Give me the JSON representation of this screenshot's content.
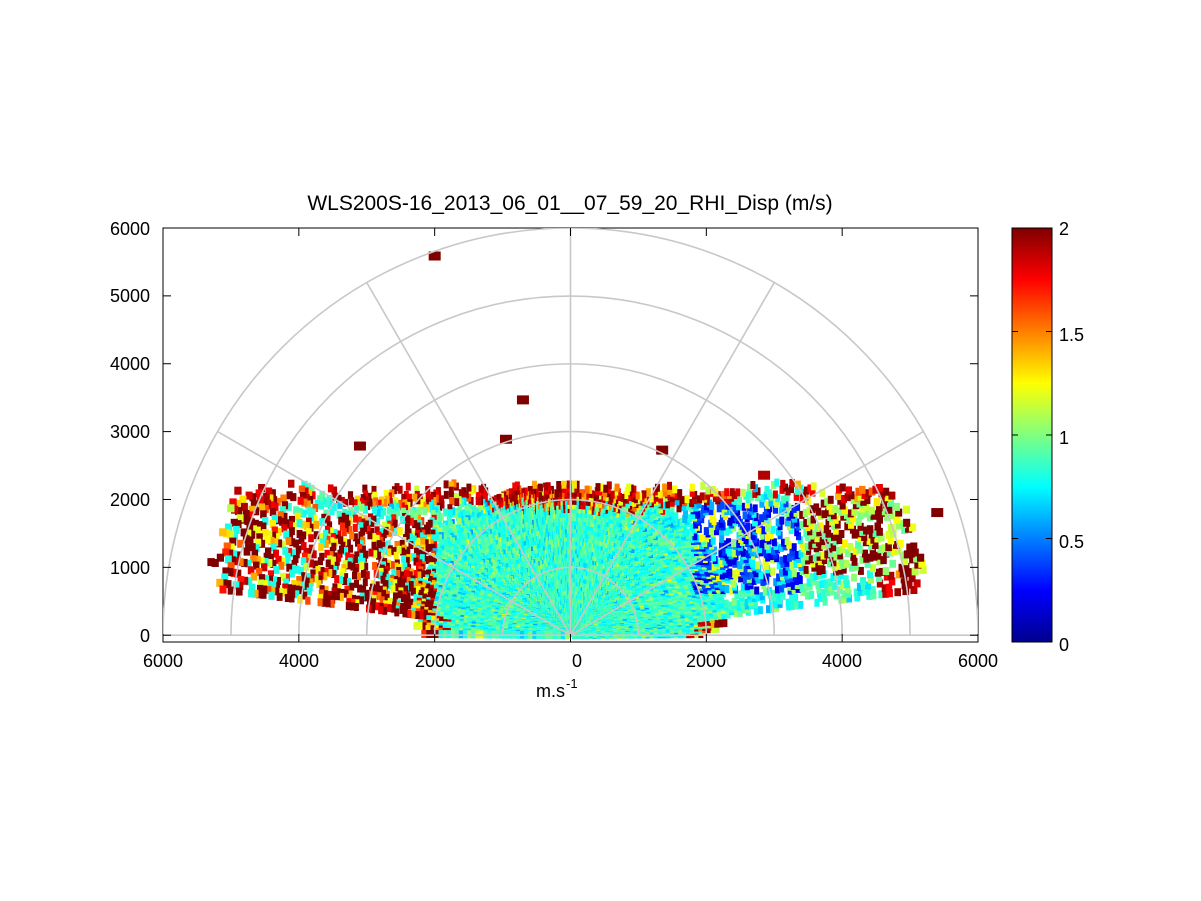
{
  "chart_data": {
    "type": "heatmap",
    "subtype": "polar RHI (range-height indicator) scan",
    "title": "WLS200S-16_2013_06_01__07_59_20_RHI_Disp (m/s)",
    "xlabel": "m.s",
    "xlabel_superscript": "-1",
    "ylabel": "",
    "xlim": [
      -6000,
      6000
    ],
    "ylim": [
      -100,
      6000
    ],
    "xticks": [
      -6000,
      -4000,
      -2000,
      0,
      2000,
      4000,
      6000
    ],
    "xtick_labels": [
      "6000",
      "4000",
      "2000",
      "0",
      "2000",
      "4000",
      "6000"
    ],
    "yticks": [
      0,
      1000,
      2000,
      3000,
      4000,
      5000,
      6000
    ],
    "ytick_labels": [
      "0",
      "1000",
      "2000",
      "3000",
      "4000",
      "5000",
      "6000"
    ],
    "polar_grid": {
      "range_rings": [
        1000,
        2000,
        3000,
        4000,
        5000,
        6000
      ],
      "spoke_angles_deg": [
        0,
        30,
        60,
        90,
        120,
        150,
        180
      ]
    },
    "colorbar": {
      "colormap": "jet",
      "min": 0,
      "max": 2,
      "ticks": [
        0,
        0.5,
        1,
        1.5,
        2
      ],
      "tick_labels": [
        "0",
        "0.5",
        "1",
        "1.5",
        "2"
      ]
    },
    "data_summary": {
      "bulk_value_approx": 0.85,
      "max_range_bulk_m": 2200,
      "regions": [
        {
          "description": "low-value band (blue)",
          "x_range": [
            1800,
            3400
          ],
          "y_range": [
            700,
            1900
          ],
          "value_approx": 0.3
        },
        {
          "description": "high-value band (dark red), left",
          "x_range": [
            -5200,
            -2000
          ],
          "y_range": [
            200,
            1700
          ],
          "value_approx": 2.0
        },
        {
          "description": "high-value fringe at top of main echo",
          "x_range": [
            -1500,
            2000
          ],
          "y_range": [
            1900,
            2200
          ],
          "value_approx": 1.8
        }
      ],
      "isolated_points": [
        {
          "x": -2000,
          "y": 5580,
          "value": 2.0
        },
        {
          "x": -700,
          "y": 3460,
          "value": 2.0
        },
        {
          "x": -3100,
          "y": 2780,
          "value": 2.0
        },
        {
          "x": -950,
          "y": 2880,
          "value": 2.0
        },
        {
          "x": 1350,
          "y": 2720,
          "value": 2.0
        },
        {
          "x": 5400,
          "y": 1800,
          "value": 2.0
        },
        {
          "x": 2850,
          "y": 2350,
          "value": 1.9
        }
      ]
    }
  }
}
